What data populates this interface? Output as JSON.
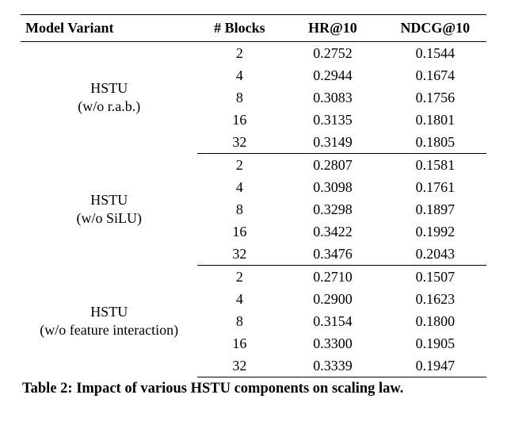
{
  "headers": {
    "variant": "Model Variant",
    "blocks": "# Blocks",
    "hr": "HR@10",
    "ndcg": "NDCG@10"
  },
  "groups": [
    {
      "variant_line1": "HSTU",
      "variant_line2": "(w/o r.a.b.)",
      "rows": [
        {
          "blocks": "2",
          "hr": "0.2752",
          "ndcg": "0.1544"
        },
        {
          "blocks": "4",
          "hr": "0.2944",
          "ndcg": "0.1674"
        },
        {
          "blocks": "8",
          "hr": "0.3083",
          "ndcg": "0.1756"
        },
        {
          "blocks": "16",
          "hr": "0.3135",
          "ndcg": "0.1801"
        },
        {
          "blocks": "32",
          "hr": "0.3149",
          "ndcg": "0.1805"
        }
      ]
    },
    {
      "variant_line1": "HSTU",
      "variant_line2": "(w/o SiLU)",
      "rows": [
        {
          "blocks": "2",
          "hr": "0.2807",
          "ndcg": "0.1581"
        },
        {
          "blocks": "4",
          "hr": "0.3098",
          "ndcg": "0.1761"
        },
        {
          "blocks": "8",
          "hr": "0.3298",
          "ndcg": "0.1897"
        },
        {
          "blocks": "16",
          "hr": "0.3422",
          "ndcg": "0.1992"
        },
        {
          "blocks": "32",
          "hr": "0.3476",
          "ndcg": "0.2043"
        }
      ]
    },
    {
      "variant_line1": "HSTU",
      "variant_line2": "(w/o feature interaction)",
      "rows": [
        {
          "blocks": "2",
          "hr": "0.2710",
          "ndcg": "0.1507"
        },
        {
          "blocks": "4",
          "hr": "0.2900",
          "ndcg": "0.1623"
        },
        {
          "blocks": "8",
          "hr": "0.3154",
          "ndcg": "0.1800"
        },
        {
          "blocks": "16",
          "hr": "0.3300",
          "ndcg": "0.1905"
        },
        {
          "blocks": "32",
          "hr": "0.3339",
          "ndcg": "0.1947"
        }
      ]
    }
  ],
  "caption": "Table 2: Impact of various HSTU components on scaling law."
}
